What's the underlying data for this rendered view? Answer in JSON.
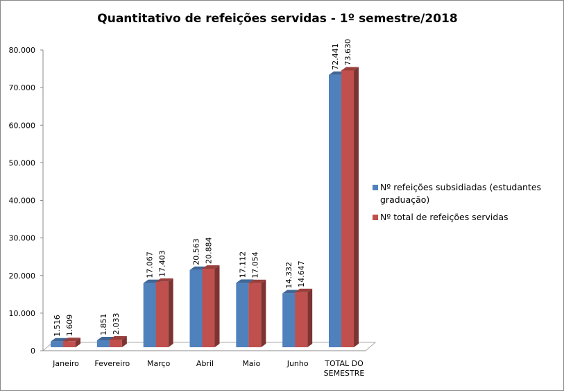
{
  "chart_data": {
    "type": "bar",
    "title": "Quantitativo  de  refeições servidas  -  1º semestre/2018",
    "categories": [
      "Janeiro",
      "Fevereiro",
      "Março",
      "Abril",
      "Maio",
      "Junho",
      "TOTAL DO SEMESTRE"
    ],
    "series": [
      {
        "name": "Nº refeições subsidiadas (estudantes graduação)",
        "color": "#4F81BD",
        "values": [
          1516,
          1851,
          17067,
          20563,
          17112,
          14332,
          72441
        ],
        "labels": [
          "1.516",
          "1.851",
          "17.067",
          "20.563",
          "17.112",
          "14.332",
          "72.441"
        ]
      },
      {
        "name": "Nº total de refeições servidas",
        "color": "#C0504D",
        "values": [
          1609,
          2033,
          17403,
          20884,
          17054,
          14647,
          73630
        ],
        "labels": [
          "1.609",
          "2.033",
          "17.403",
          "20.884",
          "17.054",
          "14.647",
          "73.630"
        ]
      }
    ],
    "legend_lines": [
      [
        "Nº refeições subsidiadas (estudantes",
        "graduação)"
      ],
      [
        "Nº total de refeições servidas"
      ]
    ],
    "ylim": [
      0,
      80000
    ],
    "yticks": [
      0,
      10000,
      20000,
      30000,
      40000,
      50000,
      60000,
      70000,
      80000
    ],
    "ytick_labels": [
      "0",
      "10.000",
      "20.000",
      "30.000",
      "40.000",
      "50.000",
      "60.000",
      "70.000",
      "80.000"
    ],
    "grid": false,
    "legend_position": "right",
    "style": "3d-clustered-column"
  }
}
